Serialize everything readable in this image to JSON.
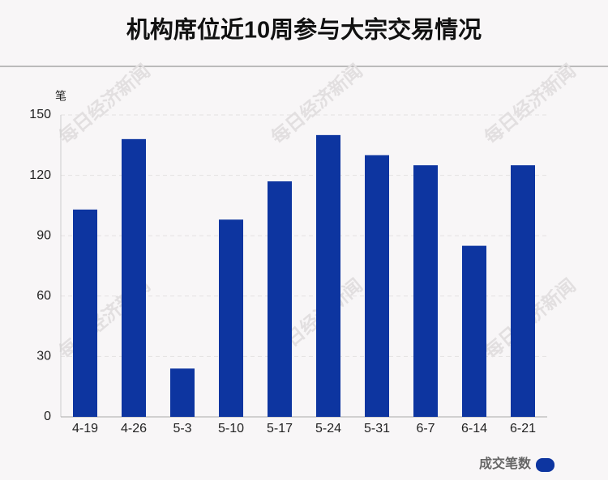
{
  "chart_data": {
    "type": "bar",
    "title": "机构席位近10周参与大宗交易情况",
    "y_label": "笔",
    "watermark": "每日经济新闻",
    "categories": [
      "4-19",
      "4-26",
      "5-3",
      "5-10",
      "5-17",
      "5-24",
      "5-31",
      "6-7",
      "6-14",
      "6-21"
    ],
    "series": [
      {
        "name": "成交笔数",
        "color": "#0d35a0",
        "values": [
          103,
          138,
          24,
          98,
          117,
          140,
          130,
          125,
          85,
          125
        ]
      }
    ],
    "ylim": [
      0,
      150
    ],
    "yticks": [
      0,
      30,
      60,
      90,
      120,
      150
    ],
    "grid": true,
    "legend": "bottom-right"
  }
}
